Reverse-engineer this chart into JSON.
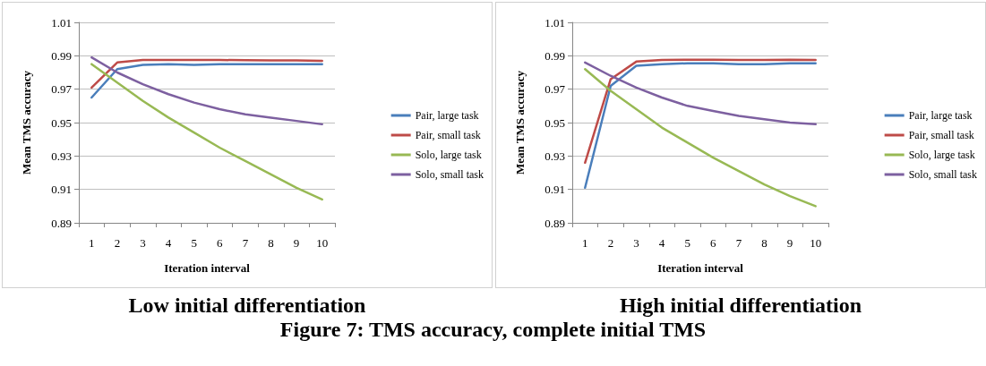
{
  "chart_data": [
    {
      "type": "line",
      "title": "Low initial differentiation",
      "xlabel": "Iteration interval",
      "ylabel": "Mean TMS accuracy",
      "categories": [
        "1",
        "2",
        "3",
        "4",
        "5",
        "6",
        "7",
        "8",
        "9",
        "10"
      ],
      "ylim": [
        0.89,
        1.01
      ],
      "yticks": [
        0.89,
        0.91,
        0.93,
        0.95,
        0.97,
        0.99,
        1.01
      ],
      "grid": "y",
      "legend": "right",
      "marker": "none",
      "line_style": "solid",
      "series": [
        {
          "name": "Pair, large task",
          "color": "#4a7ebb",
          "values": [
            0.965,
            0.982,
            0.9845,
            0.985,
            0.9845,
            0.985,
            0.985,
            0.985,
            0.985,
            0.985
          ]
        },
        {
          "name": "Pair, small task",
          "color": "#be4b48",
          "values": [
            0.971,
            0.986,
            0.9875,
            0.9875,
            0.9875,
            0.9875,
            0.9873,
            0.9872,
            0.9872,
            0.987
          ]
        },
        {
          "name": "Solo, large task",
          "color": "#98b954",
          "values": [
            0.985,
            0.974,
            0.963,
            0.953,
            0.944,
            0.935,
            0.927,
            0.919,
            0.911,
            0.904
          ]
        },
        {
          "name": "Solo, small task",
          "color": "#7d60a0",
          "values": [
            0.989,
            0.98,
            0.973,
            0.967,
            0.962,
            0.958,
            0.955,
            0.953,
            0.951,
            0.949
          ]
        }
      ],
      "annotations": [
        "Figure 7: TMS accuracy, complete initial TMS"
      ]
    },
    {
      "type": "line",
      "title": "High initial differentiation",
      "xlabel": "Iteration interval",
      "ylabel": "Mean TMS accuracy",
      "categories": [
        "1",
        "2",
        "3",
        "4",
        "5",
        "6",
        "7",
        "8",
        "9",
        "10"
      ],
      "ylim": [
        0.89,
        1.01
      ],
      "yticks": [
        0.89,
        0.91,
        0.93,
        0.95,
        0.97,
        0.99,
        1.01
      ],
      "grid": "y",
      "legend": "right",
      "marker": "none",
      "line_style": "solid",
      "series": [
        {
          "name": "Pair, large task",
          "color": "#4a7ebb",
          "values": [
            0.911,
            0.972,
            0.984,
            0.985,
            0.9855,
            0.9855,
            0.985,
            0.985,
            0.9855,
            0.9855
          ]
        },
        {
          "name": "Pair, small task",
          "color": "#be4b48",
          "values": [
            0.926,
            0.976,
            0.9865,
            0.9875,
            0.9877,
            0.9877,
            0.9875,
            0.9875,
            0.9877,
            0.9875
          ]
        },
        {
          "name": "Solo, large task",
          "color": "#98b954",
          "values": [
            0.982,
            0.969,
            0.958,
            0.947,
            0.938,
            0.929,
            0.921,
            0.913,
            0.906,
            0.9
          ]
        },
        {
          "name": "Solo, small task",
          "color": "#7d60a0",
          "values": [
            0.986,
            0.978,
            0.971,
            0.965,
            0.96,
            0.957,
            0.954,
            0.952,
            0.95,
            0.949
          ]
        }
      ]
    }
  ]
}
